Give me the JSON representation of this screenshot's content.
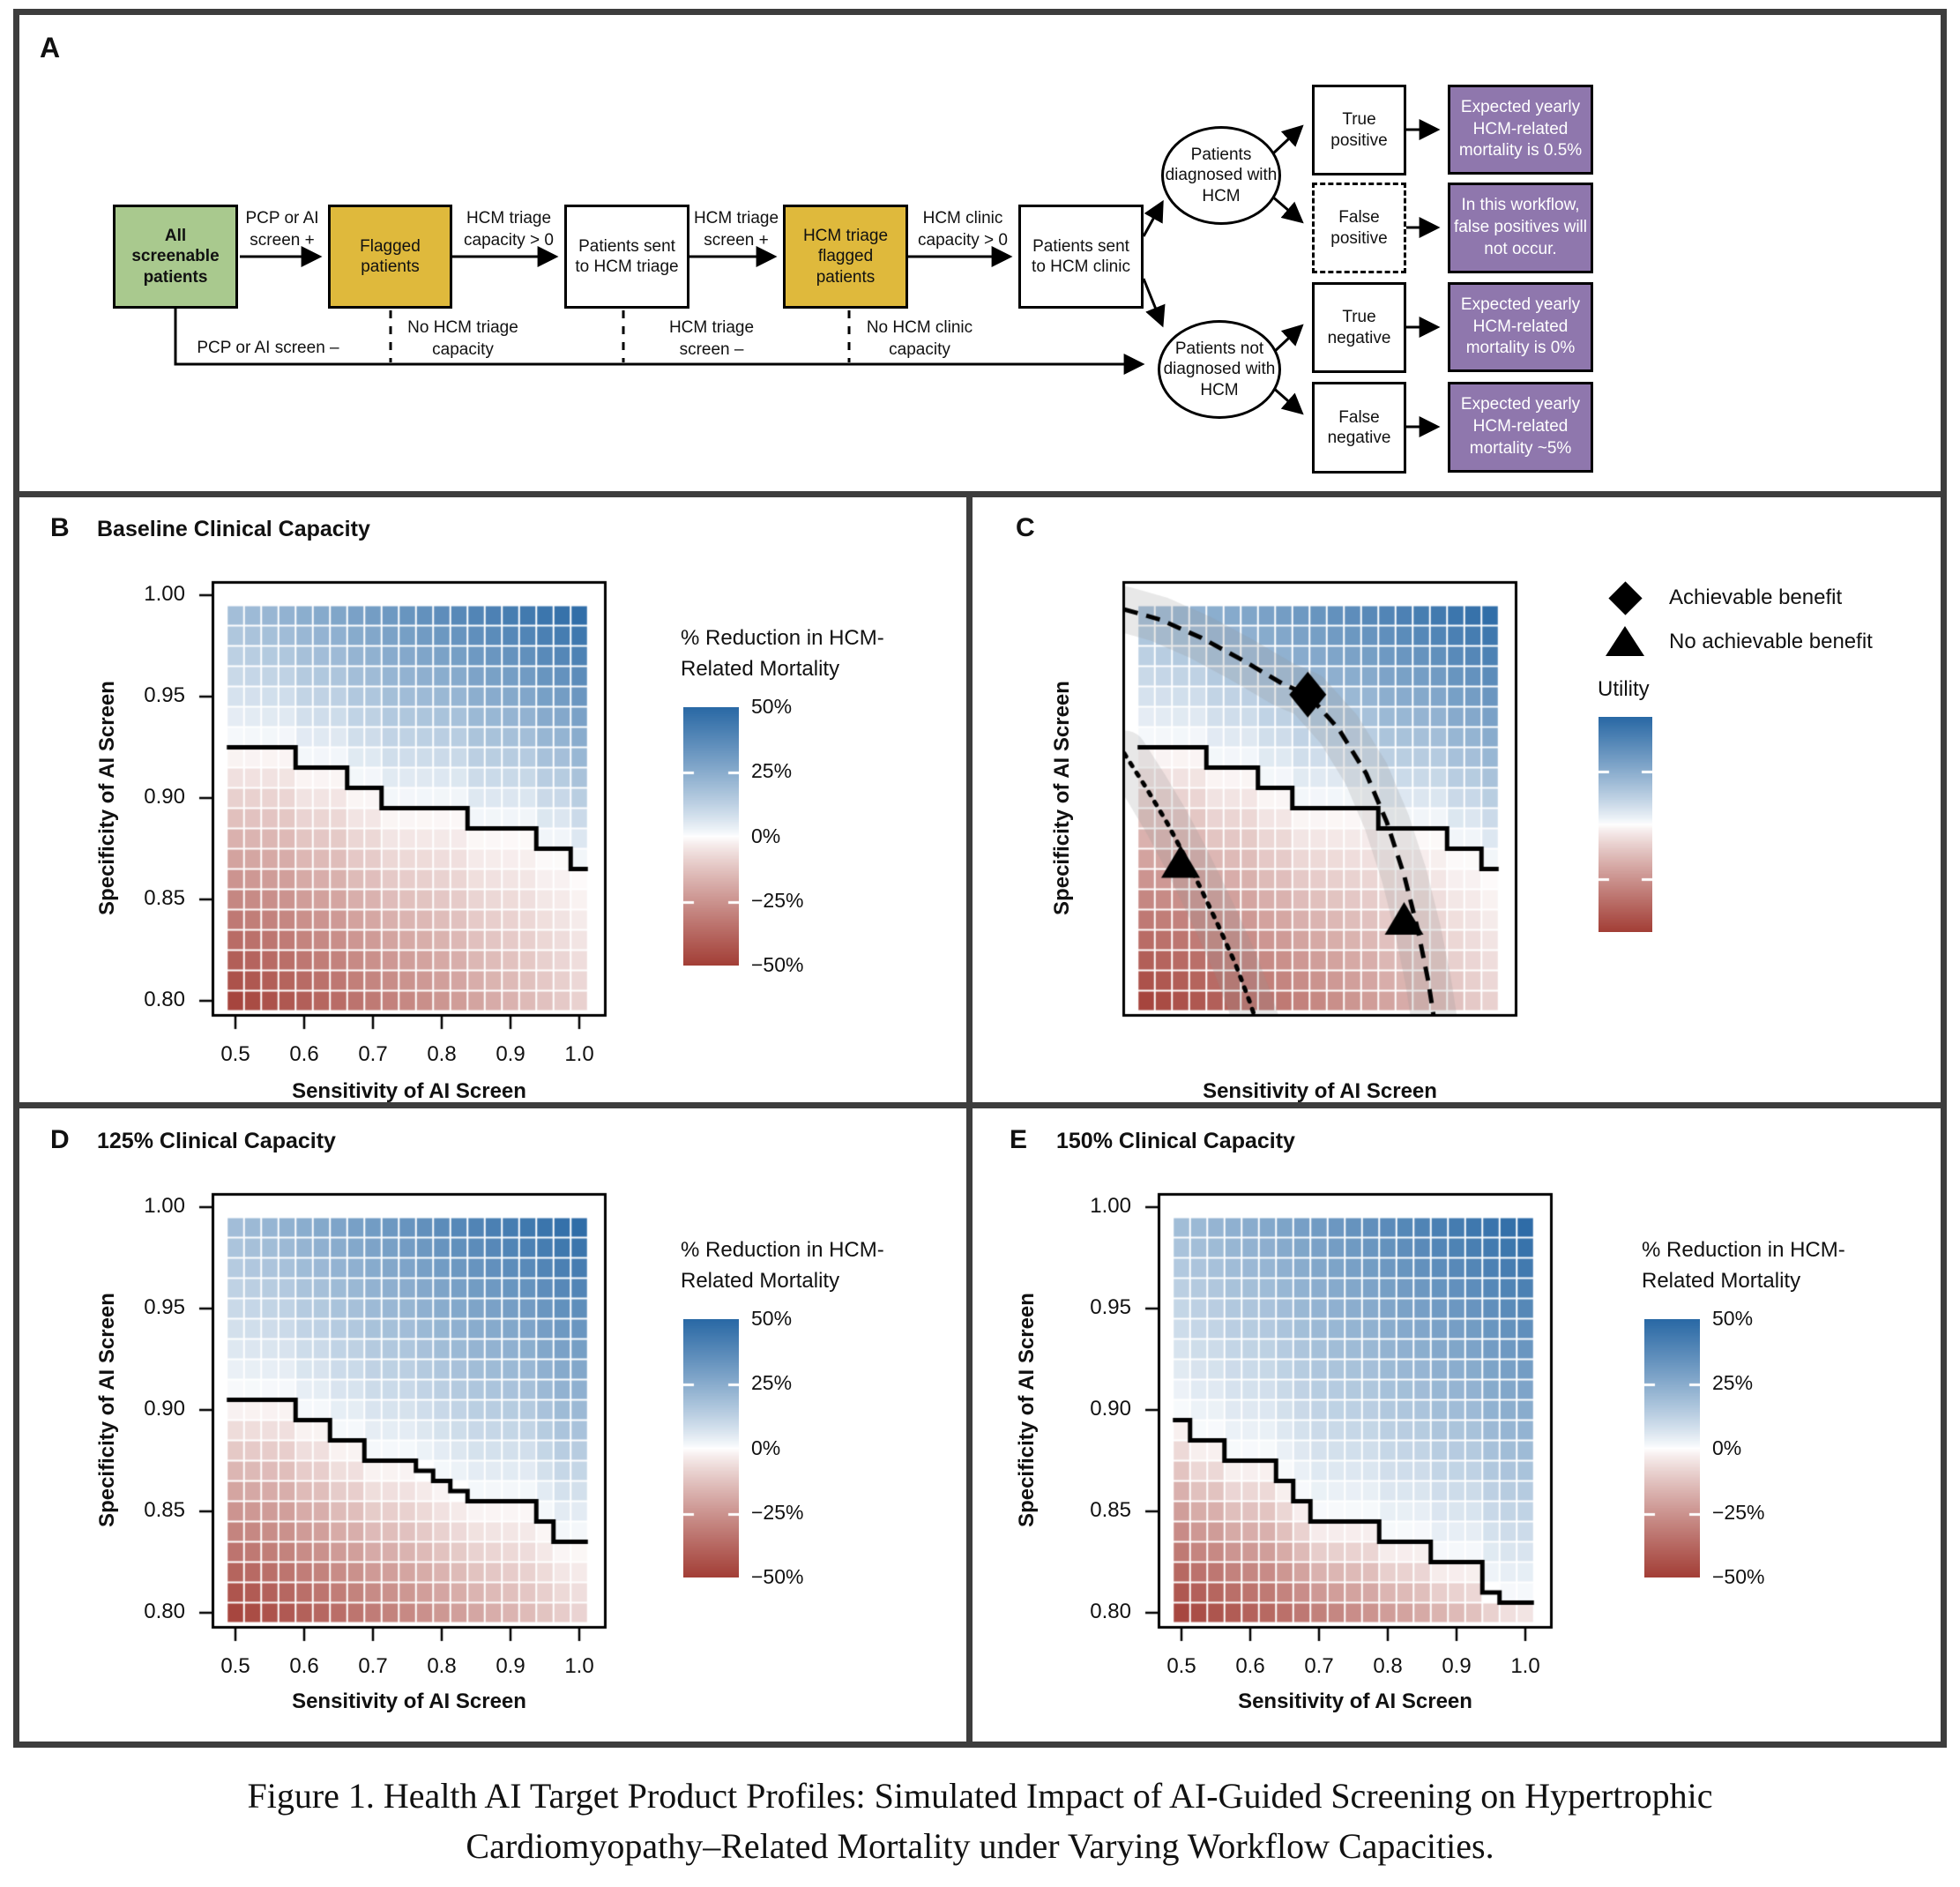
{
  "caption": {
    "line1": "Figure 1.  Health AI Target Product Profiles: Simulated Impact of AI-Guided Screening on Hypertrophic",
    "line2": "Cardiomyopathy–Related Mortality under Varying Workflow Capacities."
  },
  "panelA": {
    "label": "A",
    "colors": {
      "green": "#a9c98e",
      "yellow": "#dfb93c",
      "purple": "#8f77ad"
    },
    "boxes": {
      "screenable": "All screenable patients",
      "flagged": "Flagged patients",
      "sent_triage": "Patients sent to HCM triage",
      "triage_flagged": "HCM triage flagged patients",
      "sent_clinic": "Patients sent to HCM clinic",
      "diagnosed": "Patients diagnosed with HCM",
      "not_diagnosed": "Patients not diagnosed with HCM",
      "true_positive": "True positive",
      "false_positive": "False positive",
      "true_negative": "True negative",
      "false_negative": "False negative",
      "tp_outcome": "Expected yearly HCM-related mortality is 0.5%",
      "fp_outcome": "In this workflow, false positives will not occur.",
      "tn_outcome": "Expected yearly HCM-related mortality is 0%",
      "fn_outcome": "Expected yearly HCM-related mortality ~5%"
    },
    "edge_labels": {
      "pcp_pos": "PCP or AI screen +",
      "triage_cap": "HCM triage capacity > 0",
      "triage_pos": "HCM triage screen +",
      "clinic_cap": "HCM clinic capacity > 0",
      "pcp_neg": "PCP or AI screen –",
      "no_triage_cap": "No HCM triage capacity",
      "triage_neg": "HCM triage screen –",
      "no_clinic_cap": "No HCM clinic capacity"
    }
  },
  "chart_data": [
    {
      "id": "B",
      "panel_label": "B",
      "title": "Baseline Clinical Capacity",
      "type": "heatmap",
      "xlabel": "Sensitivity of AI Screen",
      "ylabel": "Specificity of AI Screen",
      "x_ticks": [
        {
          "v": 0.5,
          "t": "0.5"
        },
        {
          "v": 0.6,
          "t": "0.6"
        },
        {
          "v": 0.7,
          "t": "0.7"
        },
        {
          "v": 0.8,
          "t": "0.8"
        },
        {
          "v": 0.9,
          "t": "0.9"
        },
        {
          "v": 1.0,
          "t": "1.0"
        }
      ],
      "y_ticks": [
        {
          "v": 1.0,
          "t": "1.00"
        },
        {
          "v": 0.95,
          "t": "0.95"
        },
        {
          "v": 0.9,
          "t": "0.90"
        },
        {
          "v": 0.85,
          "t": "0.85"
        },
        {
          "v": 0.8,
          "t": "0.80"
        }
      ],
      "grid": {
        "sens_min": 0.5,
        "sens_step": 0.025,
        "sens_n": 21,
        "spec_min": 0.8,
        "spec_step": 0.01,
        "spec_n": 20
      },
      "xlim": [
        0.5,
        1.0
      ],
      "ylim": [
        0.8,
        1.0
      ],
      "zero_benefit_boundary": [
        [
          0.4875,
          0.925
        ],
        [
          0.5875,
          0.915
        ],
        [
          0.6625,
          0.905
        ],
        [
          0.7125,
          0.895
        ],
        [
          0.8375,
          0.885
        ],
        [
          0.9375,
          0.875
        ],
        [
          0.9875,
          0.865
        ]
      ],
      "boundary_end": 1.0125,
      "value_model": {
        "description": "% reduction in HCM-related mortality; positive above capacity boundary, negative below",
        "max_abs": 50,
        "positive": "50*py*(0.4+0.6*sx)",
        "negative": "-50*pb*(1-0.8*sx)",
        "sx": "(sens-0.5)/0.5",
        "py": "(spec-boundary)/(0.995-boundary)",
        "pb": "(boundary-spec)/(boundary-0.795)"
      },
      "colors": {
        "pos_max": "#2a69a5",
        "neg_max": "#a33f37",
        "zero": "#ffffff"
      },
      "colorbar": {
        "title_lines": [
          "% Reduction in HCM-",
          "Related Mortality"
        ],
        "tick_labels": [
          "50%",
          "25%",
          "0%",
          "−25%",
          "−50%"
        ],
        "tick_values": [
          50,
          25,
          0,
          -25,
          -50
        ]
      }
    },
    {
      "id": "C",
      "panel_label": "C",
      "title": "",
      "type": "heatmap",
      "xlabel": "Sensitivity of AI Screen",
      "ylabel": "Specificity of AI Screen",
      "x_ticks": [],
      "y_ticks": [],
      "grid": {
        "sens_min": 0.5,
        "sens_step": 0.025,
        "sens_n": 21,
        "spec_min": 0.8,
        "spec_step": 0.01,
        "spec_n": 20
      },
      "xlim": [
        0.5,
        1.0
      ],
      "ylim": [
        0.8,
        1.0
      ],
      "zero_benefit_boundary": [
        [
          0.4875,
          0.925
        ],
        [
          0.5875,
          0.915
        ],
        [
          0.6625,
          0.905
        ],
        [
          0.7125,
          0.895
        ],
        [
          0.8375,
          0.885
        ],
        [
          0.9375,
          0.875
        ],
        [
          0.9875,
          0.865
        ]
      ],
      "boundary_end": 1.0125,
      "value_model": {
        "description": "utility (same diverging surface as panel B)",
        "max_abs": 50,
        "positive": "50*py*(0.4+0.6*sx)",
        "negative": "-50*pb*(1-0.8*sx)",
        "sx": "(sens-0.5)/0.5",
        "py": "(spec-boundary)/(0.995-boundary)",
        "pb": "(boundary-spec)/(boundary-0.795)"
      },
      "colors": {
        "pos_max": "#2a69a5",
        "neg_max": "#a33f37",
        "zero": "#ffffff"
      },
      "colorbar": {
        "title_lines": [
          "Utility"
        ],
        "tick_labels": [],
        "tick_values": [
          25,
          -25
        ]
      },
      "legend": [
        {
          "marker": "diamond",
          "label": "Achievable benefit"
        },
        {
          "marker": "triangle",
          "label": "No achievable benefit"
        }
      ],
      "markers": [
        {
          "shape": "diamond",
          "sens": 0.735,
          "spec": 0.951,
          "meaning": "Achievable benefit"
        },
        {
          "shape": "triangle",
          "sens": 0.55,
          "spec": 0.868,
          "meaning": "No achievable benefit"
        },
        {
          "shape": "triangle",
          "sens": 0.875,
          "spec": 0.84,
          "meaning": "No achievable benefit"
        }
      ],
      "curves": [
        {
          "style": "dashed",
          "points": [
            [
              0.468,
              0.993
            ],
            [
              0.52,
              0.988
            ],
            [
              0.58,
              0.979
            ],
            [
              0.64,
              0.968
            ],
            [
              0.7,
              0.956
            ],
            [
              0.735,
              0.951
            ],
            [
              0.78,
              0.934
            ],
            [
              0.82,
              0.912
            ],
            [
              0.85,
              0.888
            ],
            [
              0.875,
              0.862
            ],
            [
              0.895,
              0.835
            ],
            [
              0.91,
              0.81
            ],
            [
              0.92,
              0.788
            ]
          ]
        },
        {
          "style": "dotted",
          "points": [
            [
              0.468,
              0.922
            ],
            [
              0.5,
              0.905
            ],
            [
              0.53,
              0.888
            ],
            [
              0.555,
              0.872
            ],
            [
              0.58,
              0.855
            ],
            [
              0.605,
              0.837
            ],
            [
              0.63,
              0.818
            ],
            [
              0.65,
              0.8
            ],
            [
              0.662,
              0.788
            ]
          ]
        }
      ]
    },
    {
      "id": "D",
      "panel_label": "D",
      "title": "125% Clinical Capacity",
      "type": "heatmap",
      "xlabel": "Sensitivity of AI Screen",
      "ylabel": "Specificity of AI Screen",
      "x_ticks": [
        {
          "v": 0.5,
          "t": "0.5"
        },
        {
          "v": 0.6,
          "t": "0.6"
        },
        {
          "v": 0.7,
          "t": "0.7"
        },
        {
          "v": 0.8,
          "t": "0.8"
        },
        {
          "v": 0.9,
          "t": "0.9"
        },
        {
          "v": 1.0,
          "t": "1.0"
        }
      ],
      "y_ticks": [
        {
          "v": 1.0,
          "t": "1.00"
        },
        {
          "v": 0.95,
          "t": "0.95"
        },
        {
          "v": 0.9,
          "t": "0.90"
        },
        {
          "v": 0.85,
          "t": "0.85"
        },
        {
          "v": 0.8,
          "t": "0.80"
        }
      ],
      "grid": {
        "sens_min": 0.5,
        "sens_step": 0.025,
        "sens_n": 21,
        "spec_min": 0.8,
        "spec_step": 0.01,
        "spec_n": 20
      },
      "xlim": [
        0.5,
        1.0
      ],
      "ylim": [
        0.8,
        1.0
      ],
      "zero_benefit_boundary": [
        [
          0.4875,
          0.905
        ],
        [
          0.5875,
          0.895
        ],
        [
          0.6375,
          0.885
        ],
        [
          0.6875,
          0.875
        ],
        [
          0.7625,
          0.87
        ],
        [
          0.7875,
          0.865
        ],
        [
          0.8125,
          0.86
        ],
        [
          0.8375,
          0.855
        ],
        [
          0.9375,
          0.845
        ],
        [
          0.9625,
          0.835
        ]
      ],
      "boundary_end": 1.0125,
      "value_model": {
        "description": "% reduction in HCM-related mortality at 125% capacity",
        "max_abs": 50,
        "positive": "50*py*(0.4+0.6*sx)",
        "negative": "-50*pb*(1-0.8*sx)",
        "sx": "(sens-0.5)/0.5",
        "py": "(spec-boundary)/(0.995-boundary)",
        "pb": "(boundary-spec)/(boundary-0.795)"
      },
      "colors": {
        "pos_max": "#2a69a5",
        "neg_max": "#a33f37",
        "zero": "#ffffff"
      },
      "colorbar": {
        "title_lines": [
          "% Reduction in HCM-",
          "Related Mortality"
        ],
        "tick_labels": [
          "50%",
          "25%",
          "0%",
          "−25%",
          "−50%"
        ],
        "tick_values": [
          50,
          25,
          0,
          -25,
          -50
        ]
      }
    },
    {
      "id": "E",
      "panel_label": "E",
      "title": "150% Clinical Capacity",
      "type": "heatmap",
      "xlabel": "Sensitivity of AI Screen",
      "ylabel": "Specificity of AI Screen",
      "x_ticks": [
        {
          "v": 0.5,
          "t": "0.5"
        },
        {
          "v": 0.6,
          "t": "0.6"
        },
        {
          "v": 0.7,
          "t": "0.7"
        },
        {
          "v": 0.8,
          "t": "0.8"
        },
        {
          "v": 0.9,
          "t": "0.9"
        },
        {
          "v": 1.0,
          "t": "1.0"
        }
      ],
      "y_ticks": [
        {
          "v": 1.0,
          "t": "1.00"
        },
        {
          "v": 0.95,
          "t": "0.95"
        },
        {
          "v": 0.9,
          "t": "0.90"
        },
        {
          "v": 0.85,
          "t": "0.85"
        },
        {
          "v": 0.8,
          "t": "0.80"
        }
      ],
      "grid": {
        "sens_min": 0.5,
        "sens_step": 0.025,
        "sens_n": 21,
        "spec_min": 0.8,
        "spec_step": 0.01,
        "spec_n": 20
      },
      "xlim": [
        0.5,
        1.0
      ],
      "ylim": [
        0.8,
        1.0
      ],
      "zero_benefit_boundary": [
        [
          0.4875,
          0.895
        ],
        [
          0.5125,
          0.885
        ],
        [
          0.5625,
          0.875
        ],
        [
          0.6375,
          0.865
        ],
        [
          0.6625,
          0.855
        ],
        [
          0.6875,
          0.845
        ],
        [
          0.7875,
          0.835
        ],
        [
          0.8625,
          0.825
        ],
        [
          0.9375,
          0.81
        ],
        [
          0.9625,
          0.805
        ]
      ],
      "boundary_end": 1.0125,
      "value_model": {
        "description": "% reduction in HCM-related mortality at 150% capacity",
        "max_abs": 50,
        "positive": "50*py*(0.4+0.6*sx)",
        "negative": "-50*pb*(1-0.8*sx)",
        "sx": "(sens-0.5)/0.5",
        "py": "(spec-boundary)/(0.995-boundary)",
        "pb": "(boundary-spec)/(boundary-0.795)"
      },
      "colors": {
        "pos_max": "#2a69a5",
        "neg_max": "#a33f37",
        "zero": "#ffffff"
      },
      "colorbar": {
        "title_lines": [
          "% Reduction in HCM-",
          "Related Mortality"
        ],
        "tick_labels": [
          "50%",
          "25%",
          "0%",
          "−25%",
          "−50%"
        ],
        "tick_values": [
          50,
          25,
          0,
          -25,
          -50
        ]
      }
    }
  ]
}
